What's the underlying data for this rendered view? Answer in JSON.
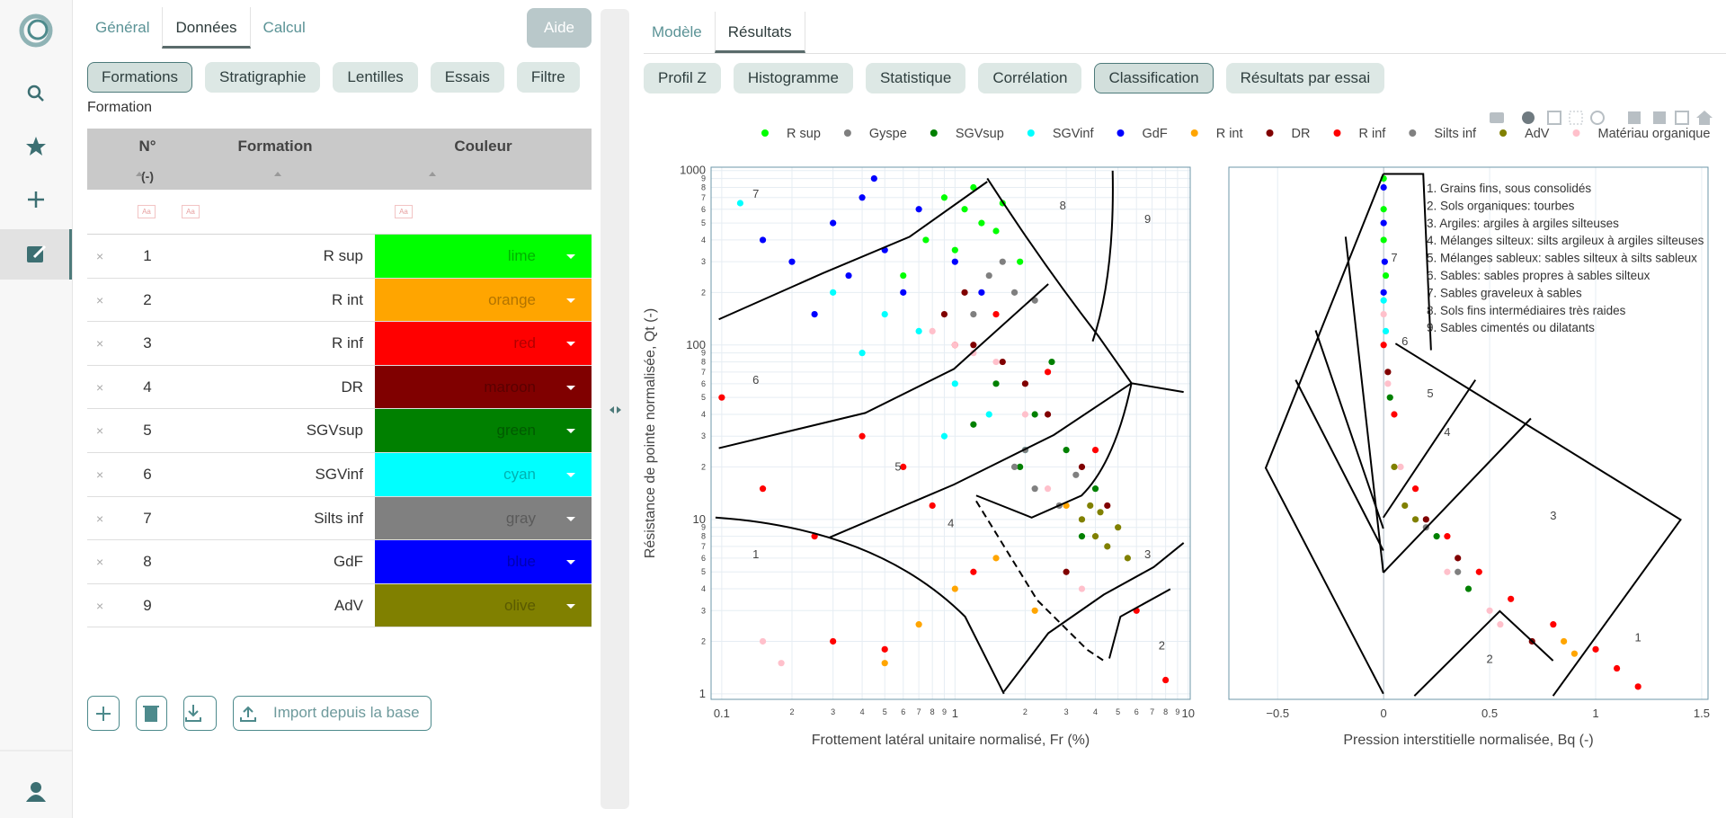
{
  "left_panel": {
    "tabs": [
      {
        "label": "Général"
      },
      {
        "label": "Données",
        "active": true
      },
      {
        "label": "Calcul"
      }
    ],
    "help_button": "Aide",
    "subtabs": [
      {
        "label": "Formations",
        "active": true
      },
      {
        "label": "Stratigraphie"
      },
      {
        "label": "Lentilles"
      },
      {
        "label": "Essais"
      },
      {
        "label": "Filtre"
      }
    ],
    "section_label": "Formation",
    "table": {
      "headers": [
        "N°",
        "Formation",
        "Couleur"
      ],
      "units": "(-)",
      "filter_placeholder": "Aa",
      "rows": [
        {
          "n": 1,
          "formation": "R sup",
          "color": "lime"
        },
        {
          "n": 2,
          "formation": "R int",
          "color": "orange"
        },
        {
          "n": 3,
          "formation": "R inf",
          "color": "red"
        },
        {
          "n": 4,
          "formation": "DR",
          "color": "maroon"
        },
        {
          "n": 5,
          "formation": "SGVsup",
          "color": "green"
        },
        {
          "n": 6,
          "formation": "SGVinf",
          "color": "cyan"
        },
        {
          "n": 7,
          "formation": "Silts inf",
          "color": "gray"
        },
        {
          "n": 8,
          "formation": "GdF",
          "color": "blue"
        },
        {
          "n": 9,
          "formation": "AdV",
          "color": "olive"
        }
      ]
    },
    "import_button": "Import depuis la base"
  },
  "right_panel": {
    "tabs": [
      {
        "label": "Modèle"
      },
      {
        "label": "Résultats",
        "active": true
      }
    ],
    "subtabs": [
      {
        "label": "Profil Z"
      },
      {
        "label": "Histogramme"
      },
      {
        "label": "Statistique"
      },
      {
        "label": "Corrélation"
      },
      {
        "label": "Classification",
        "active": true
      },
      {
        "label": "Résultats par essai"
      }
    ]
  },
  "chart_data": [
    {
      "type": "scatter",
      "xlabel": "Frottement latéral unitaire normalisé, Fr (%)",
      "ylabel": "Résistance de pointe normalisée, Qt (-)",
      "xlog": true,
      "ylog": true,
      "grid": true,
      "xlim": [
        0.09,
        10.2
      ],
      "ylim": [
        0.93,
        1045
      ],
      "xticks": [
        0.1,
        {
          "value": 0.2,
          "label": "2"
        },
        {
          "value": 0.3,
          "label": "3"
        },
        {
          "value": 0.4,
          "label": "4"
        },
        {
          "value": 0.5,
          "label": "5"
        },
        {
          "value": 0.6,
          "label": "6"
        },
        {
          "value": 0.7,
          "label": "7"
        },
        {
          "value": 0.8,
          "label": "8"
        },
        {
          "value": 0.9,
          "label": "9"
        },
        1,
        2,
        3,
        4,
        5,
        6,
        7,
        8,
        9,
        10
      ],
      "yticks": [
        1,
        2,
        3,
        4,
        5,
        6,
        7,
        8,
        9,
        10,
        {
          "value": 20,
          "label": "2"
        },
        {
          "value": 30,
          "label": "3"
        },
        {
          "value": 40,
          "label": "4"
        },
        {
          "value": 50,
          "label": "5"
        },
        {
          "value": 60,
          "label": "6"
        },
        {
          "value": 70,
          "label": "7"
        },
        {
          "value": 80,
          "label": "8"
        },
        {
          "value": 90,
          "label": "9"
        },
        100,
        {
          "value": 200,
          "label": "2"
        },
        {
          "value": 300,
          "label": "3"
        },
        {
          "value": 400,
          "label": "4"
        },
        {
          "value": 500,
          "label": "5"
        },
        {
          "value": 600,
          "label": "6"
        },
        {
          "value": 700,
          "label": "7"
        },
        {
          "value": 800,
          "label": "8"
        },
        {
          "value": 900,
          "label": "9"
        },
        1000
      ],
      "annotations": [
        {
          "text": "7",
          "x": 0.14,
          "y": 700
        },
        {
          "text": "8",
          "x": 2.9,
          "y": 600
        },
        {
          "text": "9",
          "x": 6.7,
          "y": 500
        },
        {
          "text": "6",
          "x": 0.14,
          "y": 60
        },
        {
          "text": "5",
          "x": 0.57,
          "y": 19
        },
        {
          "text": "4",
          "x": 0.96,
          "y": 9
        },
        {
          "text": "3",
          "x": 6.7,
          "y": 6
        },
        {
          "text": "1",
          "x": 0.14,
          "y": 6
        },
        {
          "text": "2",
          "x": 7.7,
          "y": 1.8
        }
      ],
      "series": [
        {
          "name": "R sup",
          "color": "lime",
          "x": [
            0.9,
            1.1,
            1.3,
            1.6,
            1.9,
            0.75,
            1.2,
            1.0,
            1.5,
            0.6
          ],
          "values": [
            700,
            600,
            500,
            650,
            300,
            400,
            800,
            350,
            450,
            250
          ]
        },
        {
          "name": "Gyspe",
          "color": "#7f7f7f",
          "x": [
            1.4,
            1.8,
            2.2,
            1.6,
            1.2
          ],
          "values": [
            250,
            200,
            180,
            300,
            150
          ]
        },
        {
          "name": "SGVsup",
          "color": "green",
          "x": [
            1.5,
            2.2,
            3.0,
            4.0,
            2.6,
            1.9,
            3.5,
            1.2
          ],
          "values": [
            60,
            40,
            25,
            15,
            80,
            20,
            8,
            35
          ]
        },
        {
          "name": "SGVinf",
          "color": "cyan",
          "x": [
            0.3,
            0.5,
            0.7,
            1.0,
            1.4,
            0.4,
            0.9,
            2.0,
            0.12
          ],
          "values": [
            200,
            150,
            120,
            60,
            40,
            90,
            30,
            25,
            650
          ]
        },
        {
          "name": "GdF",
          "color": "blue",
          "x": [
            0.15,
            0.2,
            0.3,
            0.4,
            0.5,
            0.7,
            0.25,
            0.35,
            0.6,
            1.0,
            1.3,
            0.45
          ],
          "values": [
            400,
            300,
            500,
            700,
            350,
            600,
            150,
            250,
            200,
            300,
            200,
            900
          ]
        },
        {
          "name": "R int",
          "color": "orange",
          "x": [
            0.5,
            0.7,
            1.0,
            1.5,
            2.2,
            3.0
          ],
          "values": [
            1.5,
            2.5,
            4,
            6,
            3,
            12
          ]
        },
        {
          "name": "DR",
          "color": "maroon",
          "x": [
            0.9,
            1.2,
            1.6,
            2.0,
            2.5,
            3.5,
            4.5,
            1.1,
            3.0
          ],
          "values": [
            150,
            100,
            80,
            60,
            40,
            20,
            12,
            200,
            5
          ]
        },
        {
          "name": "R inf",
          "color": "red",
          "x": [
            0.1,
            0.15,
            0.25,
            0.4,
            0.6,
            0.8,
            1.0,
            1.5,
            2.5,
            4,
            6,
            8,
            0.3,
            1.2,
            0.5
          ],
          "values": [
            50,
            15,
            8,
            30,
            20,
            12,
            100,
            150,
            70,
            25,
            3,
            1.2,
            2,
            5,
            1.8
          ]
        },
        {
          "name": "Silts inf",
          "color": "gray",
          "x": [
            1.8,
            2.2,
            2.8,
            3.3,
            2.0
          ],
          "values": [
            20,
            15,
            12,
            18,
            25
          ]
        },
        {
          "name": "AdV",
          "color": "olive",
          "x": [
            3.5,
            4.0,
            4.5,
            5.0,
            5.5,
            4.2,
            3.8
          ],
          "values": [
            10,
            8,
            7,
            9,
            6,
            11,
            12
          ]
        },
        {
          "name": "Matériau organique",
          "color": "pink",
          "x": [
            0.8,
            1.0,
            1.2,
            1.5,
            2.0,
            0.15,
            0.18,
            2.5,
            3.5
          ],
          "values": [
            120,
            100,
            90,
            80,
            40,
            2,
            1.5,
            15,
            4
          ]
        }
      ]
    },
    {
      "type": "scatter",
      "xlabel": "Pression interstitielle normalisée, Bq (-)",
      "ylog": true,
      "grid": true,
      "xlim": [
        -0.73,
        1.53
      ],
      "ylim": [
        0.93,
        1045
      ],
      "xticks": [
        {
          "value": -0.5,
          "label": "−0.5"
        },
        0,
        0.5,
        1,
        1.5
      ],
      "notes": [
        "1. Grains fins, sous consolidés",
        "2. Sols organiques: tourbes",
        "3. Argiles: argiles à argiles silteuses",
        "4. Mélanges silteux: silts argileux à argiles silteuses",
        "5. Mélanges sableux: sables silteux à silts sableux",
        "6. Sables: sables propres à sables silteux",
        "7. Sables graveleux à sables",
        "8. Sols fins intermédiaires très raides",
        "9. Sables cimentés ou dilatants"
      ],
      "annotations": [
        {
          "text": "7",
          "x": 0.05,
          "y": 300
        },
        {
          "text": "6",
          "x": 0.1,
          "y": 100
        },
        {
          "text": "5",
          "x": 0.22,
          "y": 50
        },
        {
          "text": "4",
          "x": 0.3,
          "y": 30
        },
        {
          "text": "3",
          "x": 0.8,
          "y": 10
        },
        {
          "text": "1",
          "x": 1.2,
          "y": 2
        },
        {
          "text": "2",
          "x": 0.5,
          "y": 1.5
        }
      ],
      "series": [
        {
          "color": "lime",
          "x": [
            0,
            0,
            0,
            0.01
          ],
          "values": [
            900,
            600,
            400,
            250
          ]
        },
        {
          "color": "blue",
          "x": [
            0,
            0,
            0.005,
            0
          ],
          "values": [
            800,
            500,
            300,
            200
          ]
        },
        {
          "color": "cyan",
          "x": [
            0,
            0.01
          ],
          "values": [
            180,
            120
          ]
        },
        {
          "color": "pink",
          "x": [
            0,
            0.02,
            0.08,
            0.3,
            0.5,
            0.55
          ],
          "values": [
            150,
            60,
            20,
            5,
            3,
            2.5
          ]
        },
        {
          "color": "red",
          "x": [
            0,
            0.05,
            0.15,
            0.3,
            0.45,
            0.6,
            0.8,
            1.0,
            1.1,
            1.2
          ],
          "values": [
            100,
            40,
            15,
            8,
            5,
            3.5,
            2.5,
            1.8,
            1.4,
            1.1
          ]
        },
        {
          "color": "maroon",
          "x": [
            0.02,
            0.2,
            0.35,
            0.7
          ],
          "values": [
            70,
            10,
            6,
            2
          ]
        },
        {
          "color": "green",
          "x": [
            0.03,
            0.25,
            0.4
          ],
          "values": [
            50,
            8,
            4
          ]
        },
        {
          "color": "olive",
          "x": [
            0.05,
            0.1,
            0.15
          ],
          "values": [
            20,
            12,
            10
          ]
        },
        {
          "color": "gray",
          "x": [
            0.2,
            0.35
          ],
          "values": [
            9,
            5
          ]
        },
        {
          "color": "orange",
          "x": [
            0.85,
            0.9
          ],
          "values": [
            2,
            1.7
          ]
        }
      ]
    }
  ]
}
